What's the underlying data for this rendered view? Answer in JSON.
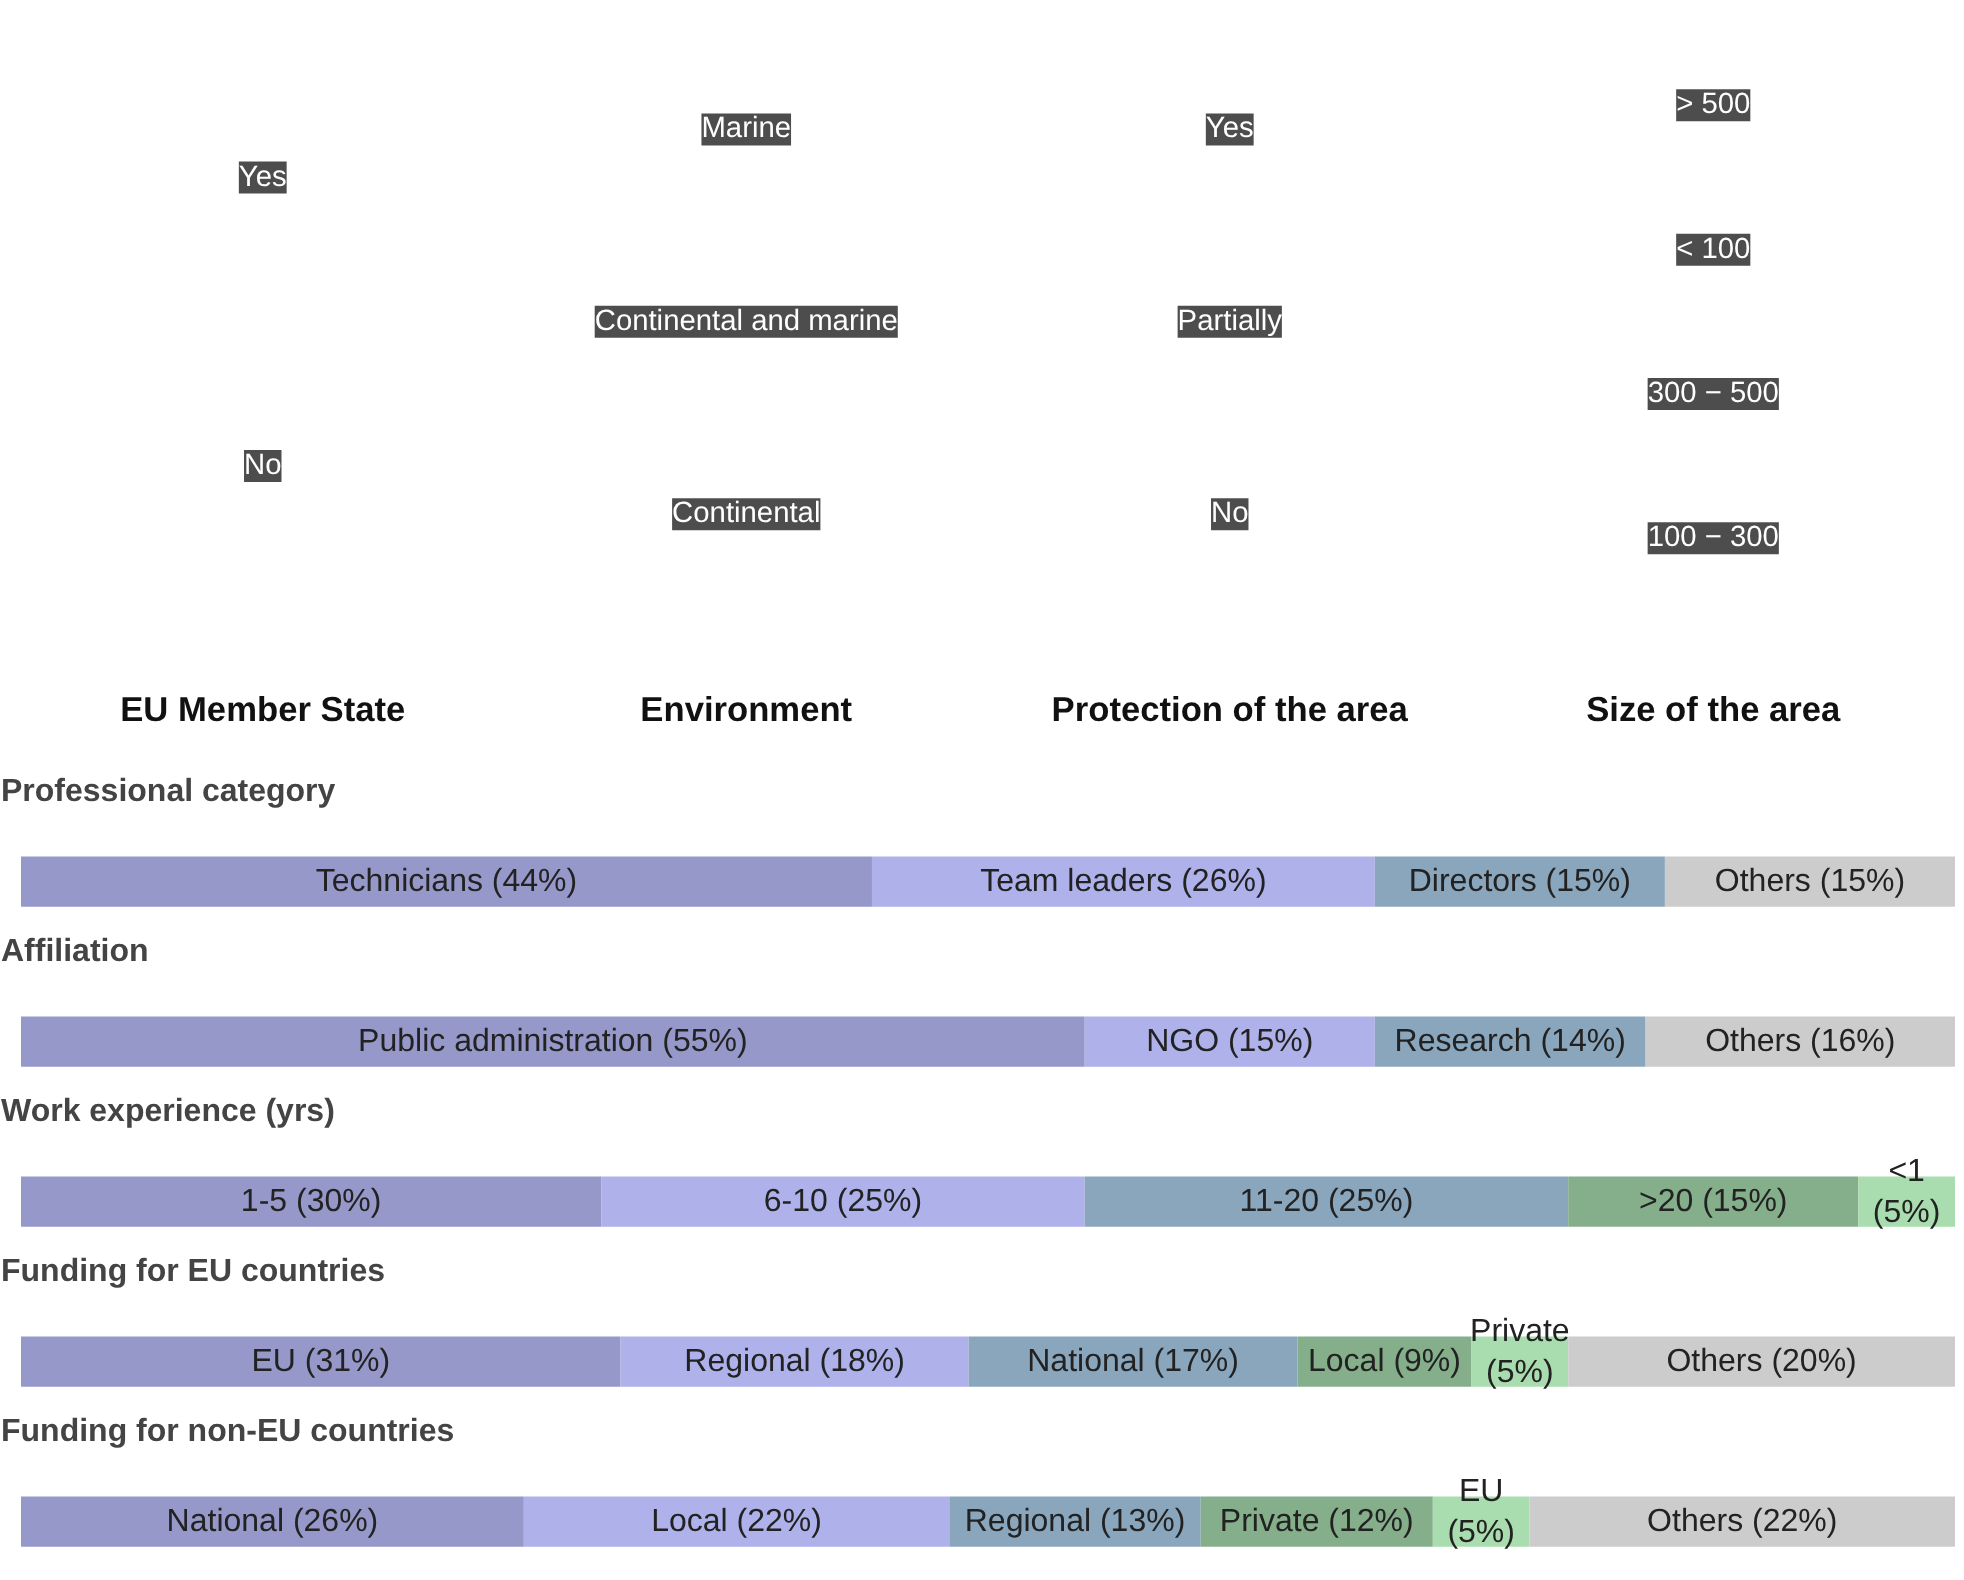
{
  "chart_data": [
    {
      "type": "other",
      "categories": [
        "EU Member State",
        "Environment",
        "Protection of the area",
        "Size of the area"
      ],
      "annotations": [
        {
          "text": "Yes",
          "x": "EU Member State"
        },
        {
          "text": "No",
          "x": "EU Member State"
        },
        {
          "text": "Marine",
          "x": "Environment"
        },
        {
          "text": "Continental and marine",
          "x": "Environment"
        },
        {
          "text": "Continental",
          "x": "Environment"
        },
        {
          "text": "Yes",
          "x": "Protection of the area"
        },
        {
          "text": "Partially",
          "x": "Protection of the area"
        },
        {
          "text": "No",
          "x": "Protection of the area"
        },
        {
          "text": "> 500",
          "x": "Size of the area"
        },
        {
          "text": "< 100",
          "x": "Size of the area"
        },
        {
          "text": "300 − 500",
          "x": "Size of the area"
        },
        {
          "text": "100 − 300",
          "x": "Size of the area"
        }
      ]
    },
    {
      "type": "bar",
      "orientation": "horizontal",
      "stacked": true,
      "title": "Professional category",
      "categories": [
        null
      ],
      "xlim": [
        0,
        100
      ],
      "tick_labels": false,
      "series": [
        {
          "color": "#9598c9",
          "values": [
            44
          ],
          "value_labels": [
            "Technicians (44%)"
          ]
        },
        {
          "color": "#aeb1ea",
          "values": [
            26
          ],
          "value_labels": [
            "Team leaders (26%)"
          ]
        },
        {
          "color": "#8aa6bd",
          "values": [
            15
          ],
          "value_labels": [
            "Directors (15%)"
          ]
        },
        {
          "color": "#cccccc",
          "values": [
            15
          ],
          "value_labels": [
            "Others (15%)"
          ]
        }
      ]
    },
    {
      "type": "bar",
      "orientation": "horizontal",
      "stacked": true,
      "title": "Affiliation",
      "categories": [
        null
      ],
      "xlim": [
        0,
        100
      ],
      "tick_labels": false,
      "series": [
        {
          "color": "#9598c9",
          "values": [
            55
          ],
          "value_labels": [
            "Public administration (55%)"
          ]
        },
        {
          "color": "#aeb1ea",
          "values": [
            15
          ],
          "value_labels": [
            "NGO (15%)"
          ]
        },
        {
          "color": "#8aa6bd",
          "values": [
            14
          ],
          "value_labels": [
            "Research (14%)"
          ]
        },
        {
          "color": "#cccccc",
          "values": [
            16
          ],
          "value_labels": [
            "Others (16%)"
          ]
        }
      ]
    },
    {
      "type": "bar",
      "orientation": "horizontal",
      "stacked": true,
      "title": "Work experience (yrs)",
      "categories": [
        null
      ],
      "xlim": [
        0,
        100
      ],
      "tick_labels": false,
      "series": [
        {
          "color": "#9598c9",
          "values": [
            30
          ],
          "value_labels": [
            "1-5 (30%)"
          ]
        },
        {
          "color": "#aeb1ea",
          "values": [
            25
          ],
          "value_labels": [
            "6-10 (25%)"
          ]
        },
        {
          "color": "#8aa6bd",
          "values": [
            25
          ],
          "value_labels": [
            "11-20 (25%)"
          ]
        },
        {
          "color": "#85ae8b",
          "values": [
            15
          ],
          "value_labels": [
            ">20 (15%)"
          ]
        },
        {
          "color": "#a9dcae",
          "values": [
            5
          ],
          "value_labels": [
            "<1\n(5%)"
          ]
        }
      ]
    },
    {
      "type": "bar",
      "orientation": "horizontal",
      "stacked": true,
      "title": "Funding for EU countries",
      "categories": [
        null
      ],
      "xlim": [
        0,
        100
      ],
      "tick_labels": false,
      "series": [
        {
          "color": "#9598c9",
          "values": [
            31
          ],
          "value_labels": [
            "EU (31%)"
          ]
        },
        {
          "color": "#aeb1ea",
          "values": [
            18
          ],
          "value_labels": [
            "Regional (18%)"
          ]
        },
        {
          "color": "#8aa6bd",
          "values": [
            17
          ],
          "value_labels": [
            "National (17%)"
          ]
        },
        {
          "color": "#85ae8b",
          "values": [
            9
          ],
          "value_labels": [
            "Local (9%)"
          ]
        },
        {
          "color": "#a9dcae",
          "values": [
            5
          ],
          "value_labels": [
            "Private\n(5%)"
          ]
        },
        {
          "color": "#cccccc",
          "values": [
            20
          ],
          "value_labels": [
            "Others (20%)"
          ]
        }
      ]
    },
    {
      "type": "bar",
      "orientation": "horizontal",
      "stacked": true,
      "title": "Funding for non-EU countries",
      "categories": [
        null
      ],
      "xlim": [
        0,
        100
      ],
      "tick_labels": false,
      "series": [
        {
          "color": "#9598c9",
          "values": [
            26
          ],
          "value_labels": [
            "National (26%)"
          ]
        },
        {
          "color": "#aeb1ea",
          "values": [
            22
          ],
          "value_labels": [
            "Local (22%)"
          ]
        },
        {
          "color": "#8aa6bd",
          "values": [
            13
          ],
          "value_labels": [
            "Regional (13%)"
          ]
        },
        {
          "color": "#85ae8b",
          "values": [
            12
          ],
          "value_labels": [
            "Private (12%)"
          ]
        },
        {
          "color": "#a9dcae",
          "values": [
            5
          ],
          "value_labels": [
            "EU\n(5%)"
          ]
        },
        {
          "color": "#cccccc",
          "values": [
            22
          ],
          "value_labels": [
            "Others (22%)"
          ]
        }
      ]
    }
  ]
}
